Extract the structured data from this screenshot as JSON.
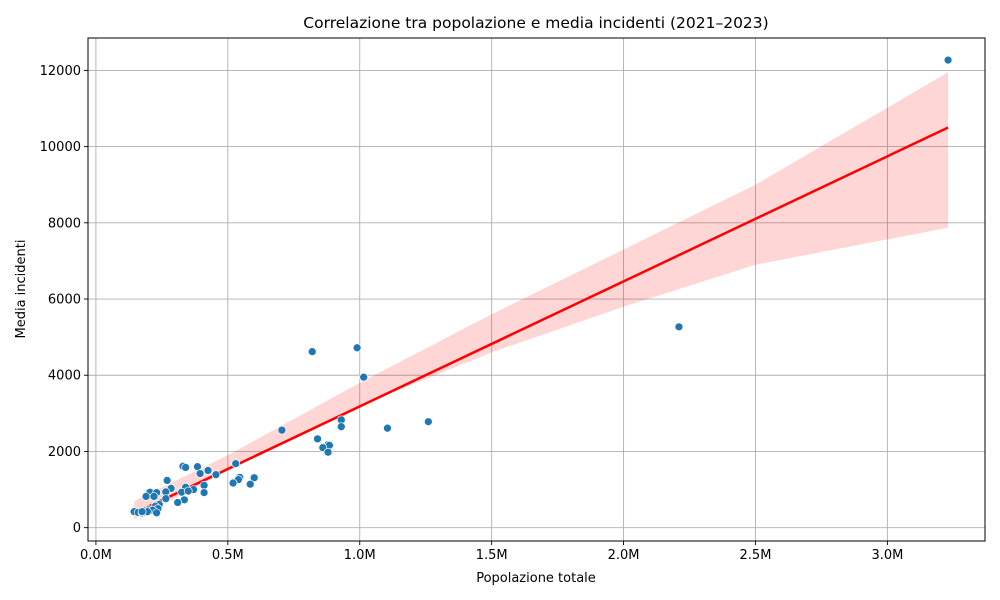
{
  "chart_data": {
    "type": "scatter",
    "title": "Correlazione tra popolazione e media incidenti (2021–2023)",
    "xlabel": "Popolazione totale",
    "ylabel": "Media incidenti",
    "xlim": [
      -30000,
      3370000
    ],
    "ylim": [
      -350,
      12850
    ],
    "x_ticks": [
      {
        "value": 0,
        "label": "0.0M"
      },
      {
        "value": 500000,
        "label": "0.5M"
      },
      {
        "value": 1000000,
        "label": "1.0M"
      },
      {
        "value": 1500000,
        "label": "1.5M"
      },
      {
        "value": 2000000,
        "label": "2.0M"
      },
      {
        "value": 2500000,
        "label": "2.5M"
      },
      {
        "value": 3000000,
        "label": "3.0M"
      }
    ],
    "y_ticks": [
      {
        "value": 0,
        "label": "0"
      },
      {
        "value": 2000,
        "label": "2000"
      },
      {
        "value": 4000,
        "label": "4000"
      },
      {
        "value": 6000,
        "label": "6000"
      },
      {
        "value": 8000,
        "label": "8000"
      },
      {
        "value": 10000,
        "label": "10000"
      },
      {
        "value": 12000,
        "label": "12000"
      }
    ],
    "grid": true,
    "colors": {
      "points": "#1f77b4",
      "regression": "#ff0000",
      "confidence_band": "#ff0000"
    },
    "series": [
      {
        "type": "scatter",
        "points": [
          [
            3230000,
            12270
          ],
          [
            2210000,
            5270
          ],
          [
            990000,
            4720
          ],
          [
            820000,
            4620
          ],
          [
            1015000,
            3950
          ],
          [
            1260000,
            2780
          ],
          [
            930000,
            2830
          ],
          [
            930000,
            2650
          ],
          [
            1105000,
            2610
          ],
          [
            705000,
            2560
          ],
          [
            840000,
            2330
          ],
          [
            880000,
            2180
          ],
          [
            885000,
            2160
          ],
          [
            860000,
            2100
          ],
          [
            880000,
            1980
          ],
          [
            530000,
            1680
          ],
          [
            330000,
            1610
          ],
          [
            340000,
            1580
          ],
          [
            385000,
            1600
          ],
          [
            395000,
            1420
          ],
          [
            425000,
            1500
          ],
          [
            455000,
            1390
          ],
          [
            545000,
            1320
          ],
          [
            540000,
            1260
          ],
          [
            600000,
            1310
          ],
          [
            520000,
            1170
          ],
          [
            585000,
            1140
          ],
          [
            410000,
            1110
          ],
          [
            270000,
            1240
          ],
          [
            340000,
            1060
          ],
          [
            370000,
            1000
          ],
          [
            285000,
            1030
          ],
          [
            410000,
            920
          ],
          [
            325000,
            930
          ],
          [
            350000,
            960
          ],
          [
            265000,
            940
          ],
          [
            205000,
            930
          ],
          [
            230000,
            920
          ],
          [
            190000,
            820
          ],
          [
            220000,
            820
          ],
          [
            265000,
            760
          ],
          [
            335000,
            730
          ],
          [
            310000,
            660
          ],
          [
            240000,
            610
          ],
          [
            225000,
            560
          ],
          [
            235000,
            500
          ],
          [
            200000,
            470
          ],
          [
            215000,
            460
          ],
          [
            145000,
            420
          ],
          [
            160000,
            400
          ],
          [
            175000,
            390
          ],
          [
            185000,
            410
          ],
          [
            195000,
            420
          ],
          [
            230000,
            390
          ],
          [
            175000,
            420
          ]
        ]
      },
      {
        "type": "line",
        "name": "",
        "x": [
          145000,
          3230000
        ],
        "y": [
          375,
          10500
        ]
      },
      {
        "type": "area",
        "name": "",
        "x": [
          145000,
          500000,
          1000000,
          1500000,
          2000000,
          2500000,
          3230000
        ],
        "upper": [
          700,
          1900,
          3800,
          5600,
          7300,
          9000,
          11950
        ],
        "lower": [
          220,
          1500,
          3200,
          4600,
          5800,
          6900,
          7870
        ]
      }
    ]
  }
}
